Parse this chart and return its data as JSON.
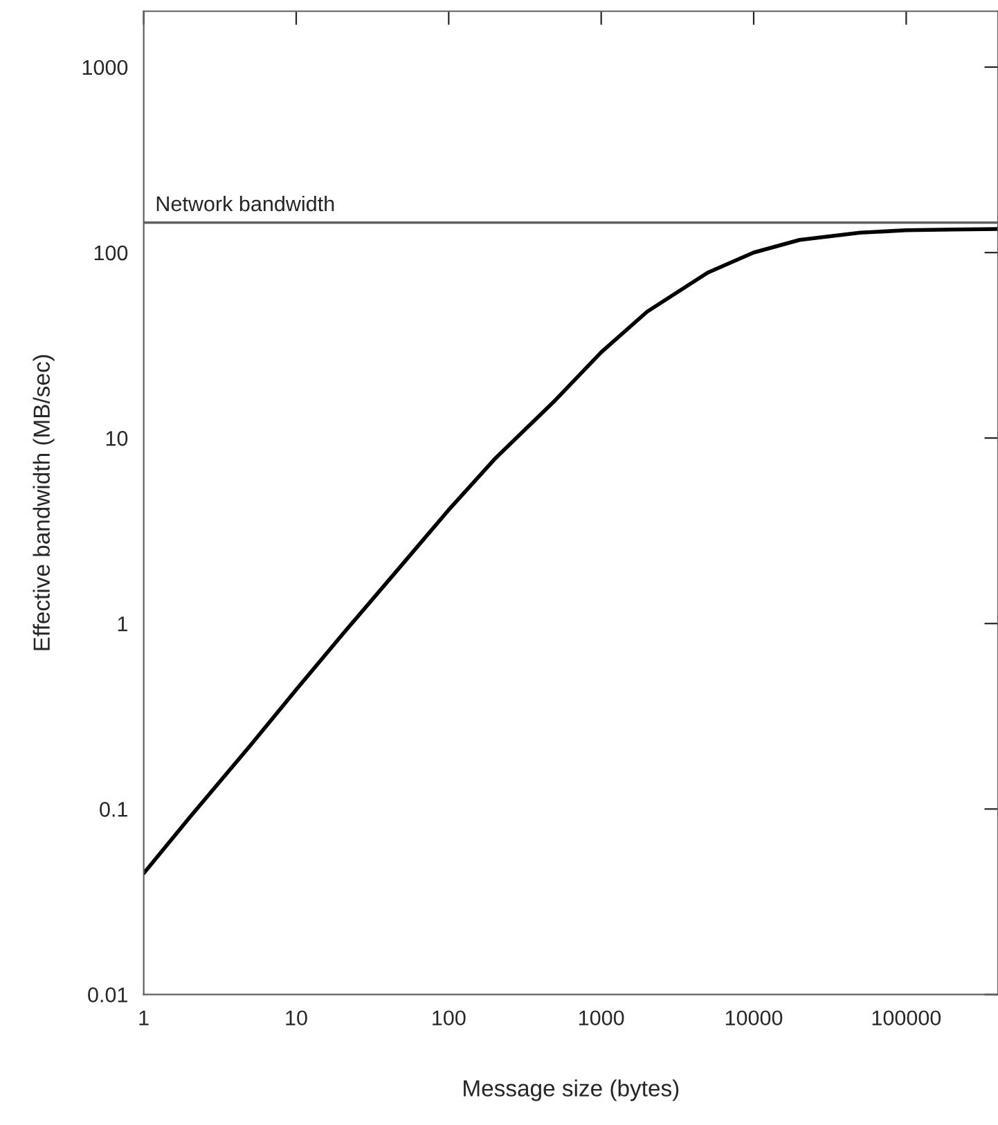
{
  "chart_data": {
    "type": "line",
    "xlabel": "Message size (bytes)",
    "ylabel": "Effective bandwidth (MB/sec)",
    "log": "xy",
    "grid": false,
    "legend": false,
    "marker": "none",
    "line_style": "solid",
    "x": [
      1,
      2,
      5,
      10,
      20,
      50,
      100,
      200,
      500,
      1000,
      2000,
      5000,
      10000,
      20000,
      50000,
      100000,
      200000,
      400000
    ],
    "series": [
      {
        "color": "#000000",
        "values": [
          0.045,
          0.09,
          0.22,
          0.44,
          0.87,
          2.1,
          4.1,
          7.7,
          16,
          29,
          48,
          78,
          100,
          117,
          128,
          132,
          133,
          134
        ]
      }
    ],
    "xlim": [
      1,
      400000
    ],
    "xticks": [
      1,
      10,
      100,
      1000,
      10000,
      100000
    ],
    "ylim": [
      0.01,
      2000
    ],
    "yticks": [
      0.01,
      0.1,
      1,
      10,
      100,
      1000
    ],
    "ref_lines": [
      {
        "axis": "y",
        "value": 145,
        "label": "Network bandwidth",
        "color": "#606060",
        "line_style": "solid"
      }
    ]
  }
}
